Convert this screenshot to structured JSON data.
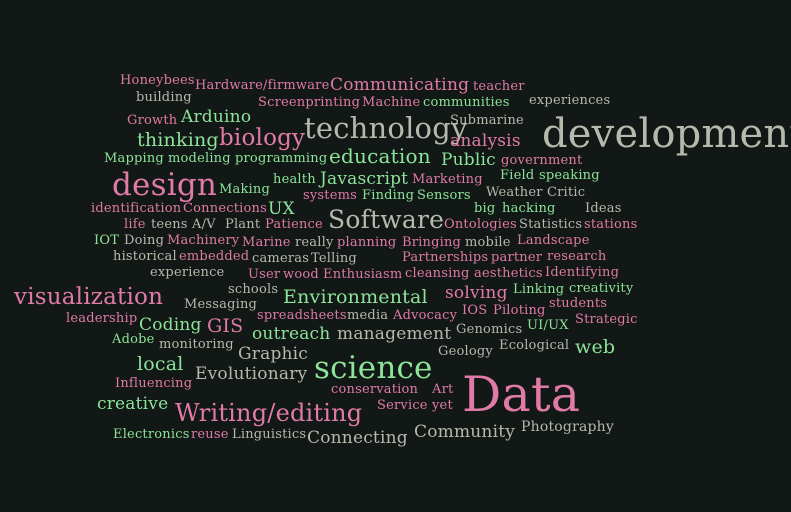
{
  "cloud": {
    "colors": {
      "background": "#121815",
      "pink": "#e07aa6",
      "green": "#8ce39a",
      "gray": "#b8b9ad"
    },
    "words": [
      "Honeybees",
      "Hardware/firmware",
      "Communicating",
      "teacher",
      "building",
      "Screenprinting",
      "Machine",
      "communities",
      "experiences",
      "Growth",
      "Arduino",
      "Submarine",
      "thinking",
      "biology",
      "technology",
      "development",
      "analysis",
      "Mapping",
      "modeling",
      "programming",
      "education",
      "Public",
      "government",
      "design",
      "health",
      "Javascript",
      "Marketing",
      "Field",
      "speaking",
      "Making",
      "systems",
      "Finding",
      "Sensors",
      "Weather",
      "Critic",
      "identification",
      "Connections",
      "UX",
      "big",
      "hacking",
      "Ideas",
      "life",
      "teens",
      "A/V",
      "Plant",
      "Patience",
      "Software",
      "Ontologies",
      "Statistics",
      "stations",
      "IOT",
      "Doing",
      "Machinery",
      "Marine",
      "really",
      "planning",
      "Bringing",
      "mobile",
      "Landscape",
      "historical",
      "embedded",
      "cameras",
      "Telling",
      "Partnerships",
      "partner",
      "research",
      "experience",
      "User",
      "wood",
      "Enthusiasm",
      "cleansing",
      "aesthetics",
      "Identifying",
      "schools",
      "Linking",
      "creativity",
      "visualization",
      "Environmental",
      "solving",
      "students",
      "Messaging",
      "spreadsheets",
      "media",
      "Advocacy",
      "IOS",
      "Piloting",
      "leadership",
      "Strategic",
      "Coding",
      "GIS",
      "outreach",
      "management",
      "Genomics",
      "UI/UX",
      "Adobe",
      "monitoring",
      "web",
      "Graphic",
      "Geology",
      "Ecological",
      "local",
      "science",
      "Evolutionary",
      "Influencing",
      "conservation",
      "Art",
      "Data",
      "creative",
      "Writing/editing",
      "Service",
      "yet",
      "Photography",
      "Community",
      "Electronics",
      "reuse",
      "Linguistics",
      "Connecting"
    ]
  }
}
